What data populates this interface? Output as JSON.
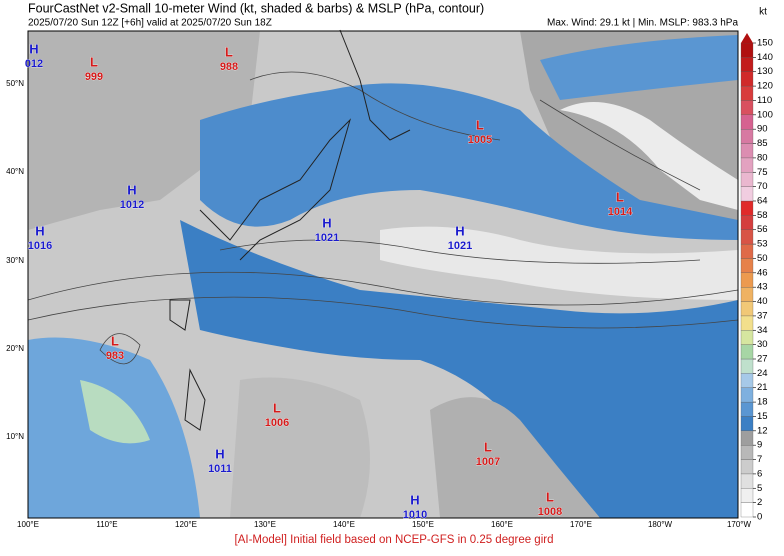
{
  "header": {
    "title": "FourCastNet v2-Small 10-meter Wind (kt, shaded & barbs) & MSLP (hPa, contour)",
    "subtitle": "2025/07/20 Sun 12Z [+6h] valid at 2025/07/20 Sun 18Z",
    "stats": "Max. Wind: 29.1 kt | Min. MSLP: 983.3 hPa"
  },
  "map": {
    "lat_labels": [
      "50°N",
      "40°N",
      "30°N",
      "20°N",
      "10°N"
    ],
    "lon_labels": [
      "100°E",
      "110°E",
      "120°E",
      "130°E",
      "140°E",
      "150°E",
      "160°E",
      "170°E",
      "180°W",
      "170°W"
    ],
    "pressure_centers": [
      {
        "type": "H",
        "value": "012"
      },
      {
        "type": "L",
        "value": "999"
      },
      {
        "type": "L",
        "value": "988"
      },
      {
        "type": "L",
        "value": "1005"
      },
      {
        "type": "L",
        "value": "1014"
      },
      {
        "type": "H",
        "value": "1012"
      },
      {
        "type": "H",
        "value": "1016"
      },
      {
        "type": "H",
        "value": "1021"
      },
      {
        "type": "H",
        "value": "1021"
      },
      {
        "type": "L",
        "value": "983"
      },
      {
        "type": "L",
        "value": "1006"
      },
      {
        "type": "H",
        "value": "1011"
      },
      {
        "type": "L",
        "value": "1007"
      },
      {
        "type": "H",
        "value": "1010"
      },
      {
        "type": "L",
        "value": "1008"
      }
    ]
  },
  "colorbar": {
    "unit": "kt",
    "ticks": [
      0,
      2,
      5,
      6,
      7,
      9,
      12,
      15,
      18,
      21,
      24,
      27,
      30,
      34,
      37,
      40,
      43,
      46,
      50,
      53,
      56,
      58,
      64,
      70,
      75,
      80,
      85,
      90,
      100,
      110,
      120,
      130,
      140,
      150
    ],
    "colors": [
      "#ffffff",
      "#f0f0f0",
      "#e0e0e0",
      "#cccccc",
      "#b8b8b8",
      "#9e9e9e",
      "#3b7fc4",
      "#5a96d2",
      "#7eb0df",
      "#a6c9e8",
      "#bfe0cc",
      "#a7d6a5",
      "#d6e6a0",
      "#f2df8c",
      "#f1c877",
      "#efb262",
      "#ec9a4f",
      "#e6814a",
      "#df6a48",
      "#d85446",
      "#d43e3e",
      "#e02a2a",
      "#f1cde0",
      "#eab7cf",
      "#e3a2c0",
      "#dc8db1",
      "#d779a2",
      "#d66290",
      "#d9505f",
      "#d83c3c",
      "#d02a2a",
      "#c21c1c",
      "#b01010"
    ]
  },
  "footer": "[AI-Model] Initial field based on NCEP-GFS in 0.25 degree gird"
}
